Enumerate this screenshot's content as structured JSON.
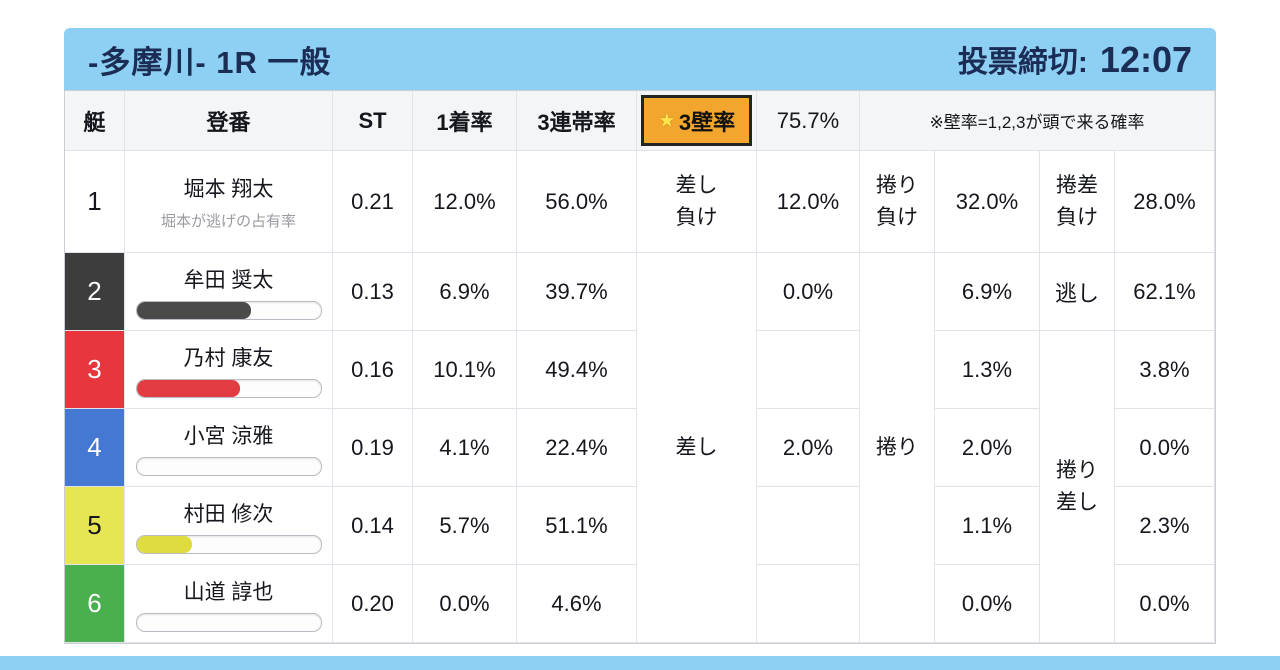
{
  "header": {
    "title": "-多摩川- 1R 一般",
    "deadline_label": "投票締切:",
    "deadline_time": "12:07"
  },
  "colors": {
    "header_bg": "#8ed0f3",
    "header_text": "#1c2d55",
    "wall_bg": "#f3a62d",
    "wall_border": "#232323"
  },
  "table": {
    "header": {
      "boat": "艇",
      "entry": "登番",
      "st": "ST",
      "first_rate": "1着率",
      "top3_rate": "3連帯率",
      "wall_icon": "★",
      "wall_label": "3壁率",
      "wall_value": "75.7%",
      "note": "※壁率=1,2,3が頭で来る確率"
    },
    "merged": {
      "sashi": "差し",
      "makuri": "捲り",
      "makuri_sashi": "捲り\n差し"
    },
    "rows": [
      {
        "boat": "1",
        "boat_bg": "#ffffff",
        "boat_fg": "#15171c",
        "name": "堀本 翔太",
        "subtitle": "堀本が逃げの占有率",
        "st": "0.21",
        "first": "12.0%",
        "top3": "56.0%",
        "a": "差し\n負け",
        "b": "12.0%",
        "c": "捲り\n負け",
        "d": "32.0%",
        "e": "捲差\n負け",
        "f": "28.0%"
      },
      {
        "boat": "2",
        "boat_bg": "#3d3d3d",
        "boat_fg": "#ffffff",
        "name": "牟田 奨太",
        "st": "0.13",
        "first": "6.9%",
        "top3": "39.7%",
        "b": "0.0%",
        "d": "6.9%",
        "e": "逃し",
        "f": "62.1%",
        "bar_pct": "62%",
        "bar_color": "#4a4a4a"
      },
      {
        "boat": "3",
        "boat_bg": "#e8363e",
        "boat_fg": "#ffffff",
        "name": "乃村 康友",
        "st": "0.16",
        "first": "10.1%",
        "top3": "49.4%",
        "b": "",
        "d": "1.3%",
        "f": "3.8%",
        "bar_pct": "56%",
        "bar_color": "#e23b41"
      },
      {
        "boat": "4",
        "boat_bg": "#4478d2",
        "boat_fg": "#ffffff",
        "name": "小宮 涼雅",
        "st": "0.19",
        "first": "4.1%",
        "top3": "22.4%",
        "b": "2.0%",
        "d": "2.0%",
        "f": "0.0%",
        "bar_pct": "0%",
        "bar_color": "#4478d2"
      },
      {
        "boat": "5",
        "boat_bg": "#e7e553",
        "boat_fg": "#15171c",
        "name": "村田 修次",
        "st": "0.14",
        "first": "5.7%",
        "top3": "51.1%",
        "b": "",
        "d": "1.1%",
        "f": "2.3%",
        "bar_pct": "30%",
        "bar_color": "#dedc3e"
      },
      {
        "boat": "6",
        "boat_bg": "#4bae4f",
        "boat_fg": "#ffffff",
        "name": "山道 諄也",
        "st": "0.20",
        "first": "0.0%",
        "top3": "4.6%",
        "b": "",
        "d": "0.0%",
        "f": "0.0%",
        "bar_pct": "0%",
        "bar_color": "#4bae4f"
      }
    ]
  }
}
